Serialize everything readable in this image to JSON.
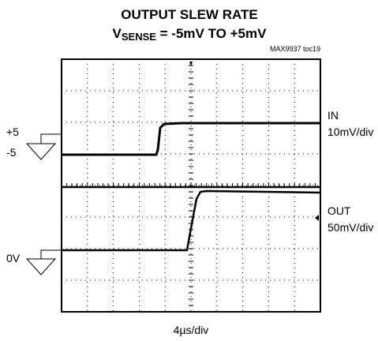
{
  "title": "OUTPUT SLEW RATE",
  "subtitle": {
    "prefix": "V",
    "subscript": "SENSE",
    "suffix": " = -5mV TO +5mV"
  },
  "figure_id": "MAX9937 toc19",
  "left_labels": {
    "in_high": "+5",
    "in_low": "-5",
    "out_zero": "0V"
  },
  "right_labels": {
    "in_name": "IN",
    "in_scale": "10mV/div",
    "out_name": "OUT",
    "out_scale": "50mV/div"
  },
  "time_scale": "4µs/div"
}
